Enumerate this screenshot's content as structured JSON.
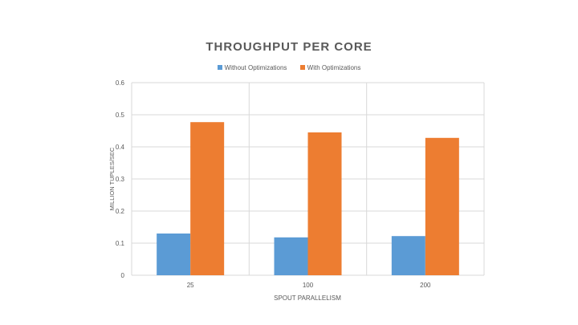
{
  "chart_data": {
    "type": "bar",
    "title": "THROUGHPUT PER CORE",
    "xlabel": "SPOUT PARALLELISM",
    "ylabel": "MILLION TUPLES/SEC",
    "categories": [
      "25",
      "100",
      "200"
    ],
    "series": [
      {
        "name": "Without Optimizations",
        "color": "#5b9bd5",
        "values": [
          0.13,
          0.118,
          0.122
        ]
      },
      {
        "name": "With Optimizations",
        "color": "#ed7d31",
        "values": [
          0.477,
          0.445,
          0.428
        ]
      }
    ],
    "ylim": [
      0,
      0.6
    ],
    "yticks": [
      "0",
      "0.1",
      "0.2",
      "0.3",
      "0.4",
      "0.5",
      "0.6"
    ],
    "grid": true,
    "legend_position": "top"
  }
}
